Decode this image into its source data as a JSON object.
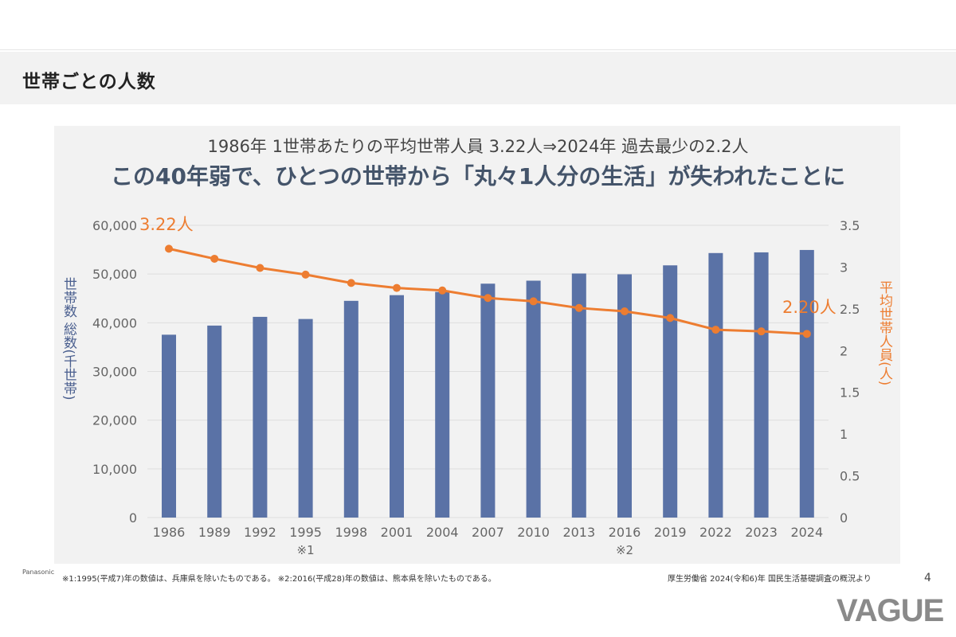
{
  "header": {
    "title": "世帯ごとの人数"
  },
  "chart_data": {
    "type": "bar",
    "subtitle": "1986年  1世帯あたりの平均世帯人員  3.22人⇒2024年  過去最少の2.2人",
    "title": "この40年弱で、ひとつの世帯から「丸々1人分の生活」が失われたことに",
    "categories": [
      "1986",
      "1989",
      "1992",
      "1995",
      "1998",
      "2001",
      "2004",
      "2007",
      "2010",
      "2013",
      "2016",
      "2019",
      "2022",
      "2023",
      "2024"
    ],
    "category_notes": {
      "1995": "※1",
      "2016": "※2"
    },
    "series": [
      {
        "kind": "bar",
        "axis": "left",
        "color": "#5a72a6",
        "values": [
          37544,
          39417,
          41210,
          40770,
          44496,
          45664,
          46323,
          48023,
          48638,
          50112,
          49945,
          51785,
          54310,
          54452,
          54943
        ]
      },
      {
        "kind": "line",
        "axis": "right",
        "color": "#ed7d31",
        "values": [
          3.22,
          3.1,
          2.99,
          2.91,
          2.81,
          2.75,
          2.72,
          2.63,
          2.59,
          2.51,
          2.47,
          2.39,
          2.25,
          2.23,
          2.2
        ]
      }
    ],
    "ylabel": "世帯数 総数(千世帯)",
    "ylabel_right": "平均世帯人員(人)",
    "ylim": [
      0,
      60000
    ],
    "yticks": [
      "0",
      "10,000",
      "20,000",
      "30,000",
      "40,000",
      "50,000",
      "60,000"
    ],
    "ylim_right": [
      0,
      3.5
    ],
    "yticks_right": [
      "0",
      "0.5",
      "1",
      "1.5",
      "2",
      "2.5",
      "3",
      "3.5"
    ],
    "annotations": {
      "first": "3.22人",
      "last": "2.20人"
    },
    "grid": true
  },
  "footer": {
    "brand": "Panasonic",
    "notes": "※1:1995(平成7)年の数値は、兵庫県を除いたものである。 ※2:2016(平成28)年の数値は、熊本県を除いたものである。",
    "source": "厚生労働省  2024(令和6)年  国民生活基礎調査の概況より",
    "page": "4",
    "logo": "VAGUE"
  }
}
